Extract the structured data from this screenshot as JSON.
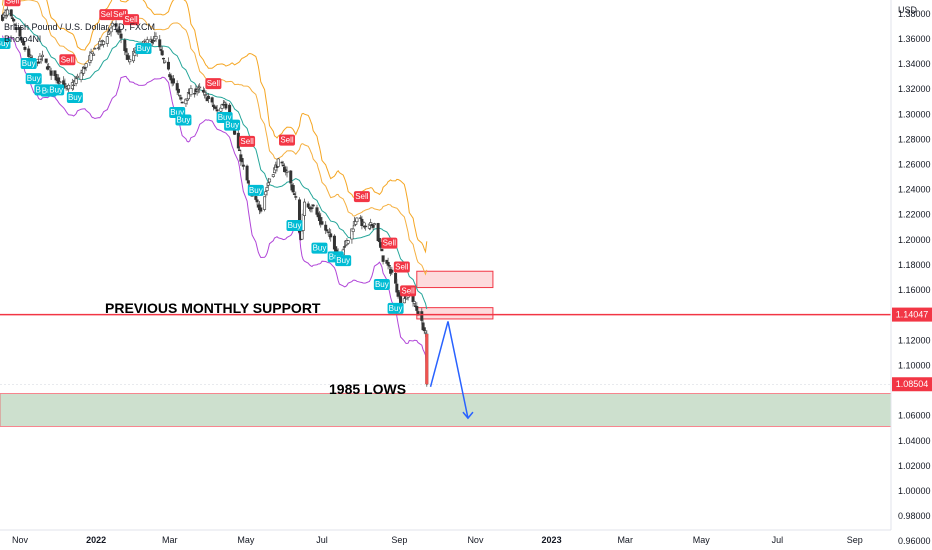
{
  "header": {
    "title": "British Pound / U.S. Dollar, 1D, FXCM",
    "author": "Bhoto4Nl"
  },
  "chart_data": {
    "type": "candlestick",
    "currency_label": "USD",
    "y_ticks": [
      "1.38000",
      "1.36000",
      "1.34000",
      "1.32000",
      "1.30000",
      "1.28000",
      "1.26000",
      "1.24000",
      "1.22000",
      "1.20000",
      "1.18000",
      "1.16000",
      "1.12000",
      "1.10000",
      "1.06000",
      "1.04000",
      "1.02000",
      "1.00000",
      "0.98000",
      "0.96000"
    ],
    "y_tick_values": [
      1.38,
      1.36,
      1.34,
      1.32,
      1.3,
      1.28,
      1.26,
      1.24,
      1.22,
      1.2,
      1.18,
      1.16,
      1.12,
      1.1,
      1.06,
      1.04,
      1.02,
      1.0,
      0.98,
      0.96
    ],
    "ylim": [
      0.953,
      1.391
    ],
    "x_ticks": [
      {
        "label": "Nov",
        "bold": false,
        "date": "2021-11-01"
      },
      {
        "label": "2022",
        "bold": true,
        "date": "2022-01-01"
      },
      {
        "label": "Mar",
        "bold": false,
        "date": "2022-03-01"
      },
      {
        "label": "May",
        "bold": false,
        "date": "2022-05-01"
      },
      {
        "label": "Jul",
        "bold": false,
        "date": "2022-07-01"
      },
      {
        "label": "Sep",
        "bold": false,
        "date": "2022-09-01"
      },
      {
        "label": "Nov",
        "bold": false,
        "date": "2022-11-01"
      },
      {
        "label": "2023",
        "bold": true,
        "date": "2023-01-01"
      },
      {
        "label": "Mar",
        "bold": false,
        "date": "2023-03-01"
      },
      {
        "label": "May",
        "bold": false,
        "date": "2023-05-01"
      },
      {
        "label": "Jul",
        "bold": false,
        "date": "2023-07-01"
      },
      {
        "label": "Sep",
        "bold": false,
        "date": "2023-09-01"
      }
    ],
    "xlim": [
      "2021-10-16",
      "2023-09-30"
    ],
    "price_path": [
      {
        "date": "2021-10-16",
        "price": 1.375
      },
      {
        "date": "2021-10-22",
        "price": 1.382
      },
      {
        "date": "2021-10-28",
        "price": 1.37
      },
      {
        "date": "2021-11-05",
        "price": 1.352
      },
      {
        "date": "2021-11-12",
        "price": 1.34
      },
      {
        "date": "2021-11-19",
        "price": 1.345
      },
      {
        "date": "2021-11-26",
        "price": 1.333
      },
      {
        "date": "2021-12-03",
        "price": 1.326
      },
      {
        "date": "2021-12-09",
        "price": 1.32
      },
      {
        "date": "2021-12-15",
        "price": 1.326
      },
      {
        "date": "2021-12-22",
        "price": 1.336
      },
      {
        "date": "2021-12-31",
        "price": 1.352
      },
      {
        "date": "2022-01-07",
        "price": 1.358
      },
      {
        "date": "2022-01-14",
        "price": 1.371
      },
      {
        "date": "2022-01-20",
        "price": 1.364
      },
      {
        "date": "2022-01-27",
        "price": 1.342
      },
      {
        "date": "2022-02-04",
        "price": 1.354
      },
      {
        "date": "2022-02-11",
        "price": 1.357
      },
      {
        "date": "2022-02-18",
        "price": 1.361
      },
      {
        "date": "2022-02-25",
        "price": 1.34
      },
      {
        "date": "2022-03-04",
        "price": 1.325
      },
      {
        "date": "2022-03-11",
        "price": 1.309
      },
      {
        "date": "2022-03-18",
        "price": 1.318
      },
      {
        "date": "2022-03-25",
        "price": 1.32
      },
      {
        "date": "2022-04-01",
        "price": 1.312
      },
      {
        "date": "2022-04-08",
        "price": 1.302
      },
      {
        "date": "2022-04-14",
        "price": 1.31
      },
      {
        "date": "2022-04-22",
        "price": 1.284
      },
      {
        "date": "2022-04-29",
        "price": 1.257
      },
      {
        "date": "2022-05-06",
        "price": 1.234
      },
      {
        "date": "2022-05-13",
        "price": 1.225
      },
      {
        "date": "2022-05-20",
        "price": 1.249
      },
      {
        "date": "2022-05-27",
        "price": 1.262
      },
      {
        "date": "2022-06-03",
        "price": 1.254
      },
      {
        "date": "2022-06-10",
        "price": 1.232
      },
      {
        "date": "2022-06-14",
        "price": 1.2
      },
      {
        "date": "2022-06-17",
        "price": 1.228
      },
      {
        "date": "2022-06-24",
        "price": 1.226
      },
      {
        "date": "2022-07-01",
        "price": 1.212
      },
      {
        "date": "2022-07-08",
        "price": 1.202
      },
      {
        "date": "2022-07-14",
        "price": 1.188
      },
      {
        "date": "2022-07-22",
        "price": 1.2
      },
      {
        "date": "2022-07-29",
        "price": 1.219
      },
      {
        "date": "2022-08-05",
        "price": 1.209
      },
      {
        "date": "2022-08-12",
        "price": 1.213
      },
      {
        "date": "2022-08-19",
        "price": 1.185
      },
      {
        "date": "2022-08-26",
        "price": 1.174
      },
      {
        "date": "2022-09-02",
        "price": 1.151
      },
      {
        "date": "2022-09-09",
        "price": 1.158
      },
      {
        "date": "2022-09-16",
        "price": 1.142
      },
      {
        "date": "2022-09-22",
        "price": 1.125
      },
      {
        "date": "2022-09-23",
        "price": 1.085
      }
    ],
    "current_price": "1.08504",
    "support_level": "1.14047",
    "support_value": 1.14047,
    "supply_zones": [
      {
        "top": 1.175,
        "bottom": 1.162,
        "from": "2022-09-15",
        "to": "2022-11-15"
      },
      {
        "top": 1.146,
        "bottom": 1.137,
        "from": "2022-09-15",
        "to": "2022-11-15"
      }
    ],
    "lows_zone": {
      "top": 1.0775,
      "bottom": 1.0515
    },
    "projection": [
      {
        "date": "2022-09-26",
        "price": 1.083
      },
      {
        "date": "2022-10-10",
        "price": 1.135
      },
      {
        "date": "2022-10-26",
        "price": 1.058
      }
    ],
    "signals": [
      {
        "type": "Buy",
        "date": "2021-10-18",
        "price": 1.356
      },
      {
        "type": "Sell",
        "date": "2021-10-26",
        "price": 1.39
      },
      {
        "type": "Buy",
        "date": "2021-11-08",
        "price": 1.34
      },
      {
        "type": "Buy",
        "date": "2021-11-12",
        "price": 1.328
      },
      {
        "type": "Buy",
        "date": "2021-11-19",
        "price": 1.319
      },
      {
        "type": "Buy",
        "date": "2021-11-24",
        "price": 1.318
      },
      {
        "type": "Buy",
        "date": "2021-11-30",
        "price": 1.319
      },
      {
        "type": "Sell",
        "date": "2021-12-09",
        "price": 1.343
      },
      {
        "type": "Buy",
        "date": "2021-12-15",
        "price": 1.313
      },
      {
        "type": "Sell",
        "date": "2022-01-10",
        "price": 1.379
      },
      {
        "type": "Sell",
        "date": "2022-01-20",
        "price": 1.379
      },
      {
        "type": "Sell",
        "date": "2022-01-29",
        "price": 1.375
      },
      {
        "type": "Buy",
        "date": "2022-02-08",
        "price": 1.352
      },
      {
        "type": "Buy",
        "date": "2022-03-07",
        "price": 1.301
      },
      {
        "type": "Buy",
        "date": "2022-03-12",
        "price": 1.295
      },
      {
        "type": "Sell",
        "date": "2022-04-05",
        "price": 1.324
      },
      {
        "type": "Buy",
        "date": "2022-04-14",
        "price": 1.297
      },
      {
        "type": "Buy",
        "date": "2022-04-20",
        "price": 1.291
      },
      {
        "type": "Sell",
        "date": "2022-05-02",
        "price": 1.278
      },
      {
        "type": "Buy",
        "date": "2022-05-09",
        "price": 1.239
      },
      {
        "type": "Sell",
        "date": "2022-06-03",
        "price": 1.279
      },
      {
        "type": "Buy",
        "date": "2022-06-09",
        "price": 1.211
      },
      {
        "type": "Buy",
        "date": "2022-06-29",
        "price": 1.193
      },
      {
        "type": "Buy",
        "date": "2022-07-12",
        "price": 1.186
      },
      {
        "type": "Buy",
        "date": "2022-07-18",
        "price": 1.183
      },
      {
        "type": "Sell",
        "date": "2022-08-02",
        "price": 1.234
      },
      {
        "type": "Sell",
        "date": "2022-08-24",
        "price": 1.197
      },
      {
        "type": "Buy",
        "date": "2022-08-18",
        "price": 1.164
      },
      {
        "type": "Sell",
        "date": "2022-09-03",
        "price": 1.178
      },
      {
        "type": "Sell",
        "date": "2022-09-08",
        "price": 1.159
      },
      {
        "type": "Buy",
        "date": "2022-08-29",
        "price": 1.145
      }
    ]
  },
  "annotations": {
    "support_text": "PREVIOUS MONTHLY SUPPORT",
    "lows_text": "1985 LOWS"
  }
}
